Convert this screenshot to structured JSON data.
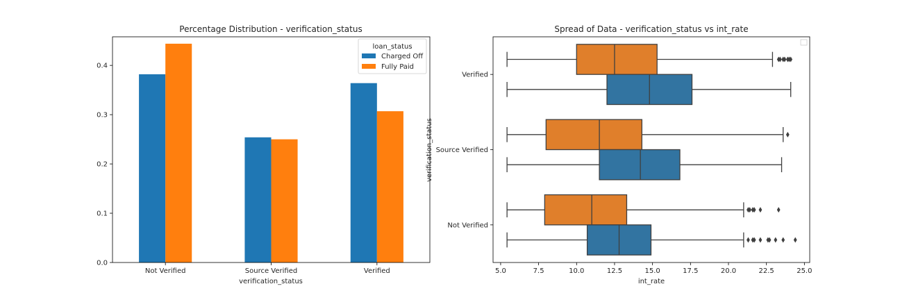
{
  "chart_data": [
    {
      "type": "bar",
      "title": "Percentage Distribution - verification_status",
      "xlabel": "verification_status",
      "ylabel": "",
      "categories": [
        "Not Verified",
        "Source Verified",
        "Verified"
      ],
      "series": [
        {
          "name": "Charged Off",
          "color": "#1f77b4",
          "values": [
            0.382,
            0.254,
            0.364
          ]
        },
        {
          "name": "Fully Paid",
          "color": "#ff7f0e",
          "values": [
            0.444,
            0.25,
            0.307
          ]
        }
      ],
      "ylim": [
        0,
        0.458
      ],
      "yticks": [
        0.0,
        0.1,
        0.2,
        0.3,
        0.4
      ],
      "ytick_labels": [
        "0.0",
        "0.1",
        "0.2",
        "0.3",
        "0.4"
      ],
      "legend": {
        "title": "loan_status",
        "placement": "top-right"
      },
      "grid": false
    },
    {
      "type": "boxplot",
      "orientation": "horizontal",
      "title": "Spread of Data - verification_status vs int_rate",
      "xlabel": "int_rate",
      "ylabel": "verification_status",
      "categories": [
        "Verified",
        "Source Verified",
        "Not Verified"
      ],
      "xlim": [
        4.5,
        25.35
      ],
      "xticks": [
        5.0,
        7.5,
        10.0,
        12.5,
        15.0,
        17.5,
        20.0,
        22.5,
        25.0
      ],
      "xtick_labels": [
        "5.0",
        "7.5",
        "10.0",
        "12.5",
        "15.0",
        "17.5",
        "20.0",
        "22.5",
        "25.0"
      ],
      "series": [
        {
          "name": "Fully Paid",
          "color": "#e07f2b",
          "boxes": [
            {
              "whisker_low": 5.42,
              "q1": 10.0,
              "median": 12.5,
              "q3": 15.3,
              "whisker_high": 22.9,
              "outliers": [
                23.3,
                23.4,
                23.6,
                23.7,
                23.9,
                24.0,
                24.1
              ]
            },
            {
              "whisker_low": 5.42,
              "q1": 7.99,
              "median": 11.5,
              "q3": 14.3,
              "whisker_high": 23.6,
              "outliers": [
                23.9
              ]
            },
            {
              "whisker_low": 5.42,
              "q1": 7.9,
              "median": 11.0,
              "q3": 13.3,
              "whisker_high": 21.0,
              "outliers": [
                21.3,
                21.4,
                21.6,
                21.7,
                22.1,
                23.3
              ]
            }
          ]
        },
        {
          "name": "Charged Off",
          "color": "#3274a1",
          "boxes": [
            {
              "whisker_low": 5.42,
              "q1": 12.0,
              "median": 14.8,
              "q3": 17.6,
              "whisker_high": 24.1,
              "outliers": []
            },
            {
              "whisker_low": 5.42,
              "q1": 11.5,
              "median": 14.2,
              "q3": 16.8,
              "whisker_high": 23.5,
              "outliers": []
            },
            {
              "whisker_low": 5.42,
              "q1": 10.7,
              "median": 12.8,
              "q3": 14.9,
              "whisker_high": 21.0,
              "outliers": [
                21.3,
                21.6,
                21.7,
                22.1,
                22.6,
                22.7,
                23.1,
                23.6,
                24.4
              ]
            }
          ]
        }
      ],
      "legend": {
        "entries": [],
        "placement": "top-right"
      },
      "grid": false
    }
  ]
}
